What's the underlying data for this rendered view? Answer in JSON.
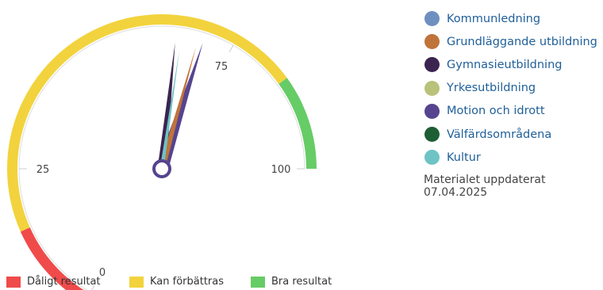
{
  "chart_data": {
    "type": "gauge",
    "scale": {
      "min": 0,
      "max": 100,
      "ticks": [
        0,
        25,
        75,
        100
      ]
    },
    "bands": [
      {
        "name": "Dåligt resultat",
        "from": 0,
        "to": 15,
        "color": "#f04b4b"
      },
      {
        "name": "Kan förbättras",
        "from": 15,
        "to": 85,
        "color": "#f2d33d"
      },
      {
        "name": "Bra resultat",
        "from": 85,
        "to": 100,
        "color": "#66cc66"
      }
    ],
    "series": [
      {
        "name": "Kommunledning",
        "color": "#6f8fc0",
        "value": null
      },
      {
        "name": "Grundläggande utbildning",
        "color": "#c0743a",
        "value": 69
      },
      {
        "name": "Gymnasieutbildning",
        "color": "#3b2450",
        "value": 65
      },
      {
        "name": "Yrkesutbildning",
        "color": "#b9c27a",
        "value": null
      },
      {
        "name": "Motion och idrott",
        "color": "#56448f",
        "value": 70
      },
      {
        "name": "Välfärdsområdena",
        "color": "#1e5e34",
        "value": null
      },
      {
        "name": "Kultur",
        "color": "#6ec3c4",
        "value": 66
      }
    ]
  },
  "updated_text": "Materialet uppdaterat 07.04.2025"
}
